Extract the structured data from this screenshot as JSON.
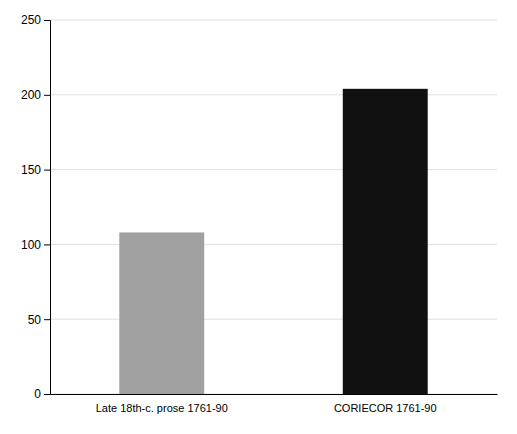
{
  "chart_data": {
    "type": "bar",
    "categories": [
      "Late 18th-c. prose 1761-90",
      "CORIECOR 1761-90"
    ],
    "values": [
      108,
      204
    ],
    "colors": [
      "#a0a0a0",
      "#111111"
    ],
    "ylim": [
      0,
      250
    ],
    "yticks": [
      0,
      50,
      100,
      150,
      200,
      250
    ],
    "grid": true
  }
}
